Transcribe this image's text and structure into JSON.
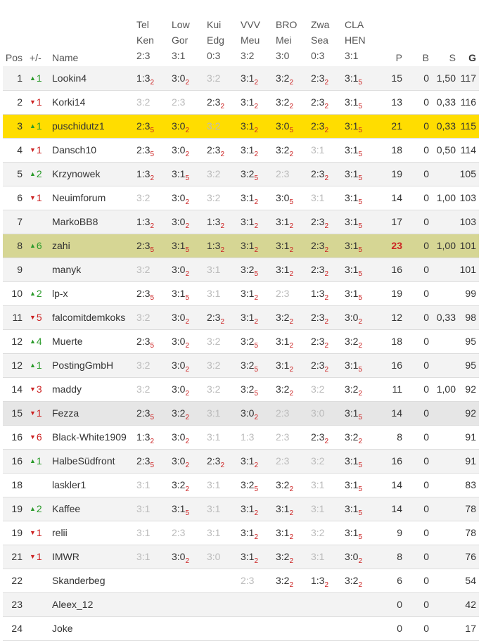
{
  "headers": {
    "pos": "Pos",
    "change": "+/-",
    "name": "Name",
    "p": "P",
    "b": "B",
    "s": "S",
    "g": "G"
  },
  "matches": [
    {
      "home": "Tel",
      "away": "Ken",
      "score": "2:3"
    },
    {
      "home": "Low",
      "away": "Gor",
      "score": "3:1"
    },
    {
      "home": "Kui",
      "away": "Edg",
      "score": "0:3"
    },
    {
      "home": "VVV",
      "away": "Meu",
      "score": "3:2"
    },
    {
      "home": "BRO",
      "away": "Mei",
      "score": "3:0"
    },
    {
      "home": "Zwa",
      "away": "Sea",
      "score": "0:3"
    },
    {
      "home": "CLA",
      "away": "HEN",
      "score": "3:1"
    }
  ],
  "rows": [
    {
      "pos": "1",
      "dir": "up",
      "delta": "1",
      "name": "Lookin4",
      "hl": "",
      "tips": [
        {
          "t": "1:3",
          "p": "2"
        },
        {
          "t": "3:0",
          "p": "2"
        },
        {
          "t": "3:2",
          "p": "",
          "f": true
        },
        {
          "t": "3:1",
          "p": "2"
        },
        {
          "t": "3:2",
          "p": "2"
        },
        {
          "t": "2:3",
          "p": "2"
        },
        {
          "t": "3:1",
          "p": "5"
        }
      ],
      "p": "15",
      "b": "0",
      "s": "1,50",
      "g": "117"
    },
    {
      "pos": "2",
      "dir": "down",
      "delta": "1",
      "name": "Korki14",
      "hl": "",
      "tips": [
        {
          "t": "3:2",
          "p": "",
          "f": true
        },
        {
          "t": "2:3",
          "p": "",
          "f": true
        },
        {
          "t": "2:3",
          "p": "2"
        },
        {
          "t": "3:1",
          "p": "2"
        },
        {
          "t": "3:2",
          "p": "2"
        },
        {
          "t": "2:3",
          "p": "2"
        },
        {
          "t": "3:1",
          "p": "5"
        }
      ],
      "p": "13",
      "b": "0",
      "s": "0,33",
      "g": "116"
    },
    {
      "pos": "3",
      "dir": "up",
      "delta": "1",
      "name": "puschidutz1",
      "hl": "yellow",
      "tips": [
        {
          "t": "2:3",
          "p": "5"
        },
        {
          "t": "3:0",
          "p": "2"
        },
        {
          "t": "3:2",
          "p": "",
          "f": true
        },
        {
          "t": "3:1",
          "p": "2"
        },
        {
          "t": "3:0",
          "p": "5"
        },
        {
          "t": "2:3",
          "p": "2"
        },
        {
          "t": "3:1",
          "p": "5"
        }
      ],
      "p": "21",
      "b": "0",
      "s": "0,33",
      "g": "115"
    },
    {
      "pos": "4",
      "dir": "down",
      "delta": "1",
      "name": "Dansch10",
      "hl": "",
      "tips": [
        {
          "t": "2:3",
          "p": "5"
        },
        {
          "t": "3:0",
          "p": "2"
        },
        {
          "t": "2:3",
          "p": "2"
        },
        {
          "t": "3:1",
          "p": "2"
        },
        {
          "t": "3:2",
          "p": "2"
        },
        {
          "t": "3:1",
          "p": "",
          "f": true
        },
        {
          "t": "3:1",
          "p": "5"
        }
      ],
      "p": "18",
      "b": "0",
      "s": "0,50",
      "g": "114"
    },
    {
      "pos": "5",
      "dir": "up",
      "delta": "2",
      "name": "Krzynowek",
      "hl": "",
      "tips": [
        {
          "t": "1:3",
          "p": "2"
        },
        {
          "t": "3:1",
          "p": "5"
        },
        {
          "t": "3:2",
          "p": "",
          "f": true
        },
        {
          "t": "3:2",
          "p": "5"
        },
        {
          "t": "2:3",
          "p": "",
          "f": true
        },
        {
          "t": "2:3",
          "p": "2"
        },
        {
          "t": "3:1",
          "p": "5"
        }
      ],
      "p": "19",
      "b": "0",
      "s": "",
      "g": "105"
    },
    {
      "pos": "6",
      "dir": "down",
      "delta": "1",
      "name": "Neuimforum",
      "hl": "",
      "tips": [
        {
          "t": "3:2",
          "p": "",
          "f": true
        },
        {
          "t": "3:0",
          "p": "2"
        },
        {
          "t": "3:2",
          "p": "",
          "f": true
        },
        {
          "t": "3:1",
          "p": "2"
        },
        {
          "t": "3:0",
          "p": "5"
        },
        {
          "t": "3:1",
          "p": "",
          "f": true
        },
        {
          "t": "3:1",
          "p": "5"
        }
      ],
      "p": "14",
      "b": "0",
      "s": "1,00",
      "g": "103"
    },
    {
      "pos": "7",
      "dir": "",
      "delta": "",
      "name": "MarkoBB8",
      "hl": "",
      "tips": [
        {
          "t": "1:3",
          "p": "2"
        },
        {
          "t": "3:0",
          "p": "2"
        },
        {
          "t": "1:3",
          "p": "2"
        },
        {
          "t": "3:1",
          "p": "2"
        },
        {
          "t": "3:1",
          "p": "2"
        },
        {
          "t": "2:3",
          "p": "2"
        },
        {
          "t": "3:1",
          "p": "5"
        }
      ],
      "p": "17",
      "b": "0",
      "s": "",
      "g": "103"
    },
    {
      "pos": "8",
      "dir": "up",
      "delta": "6",
      "name": "zahi",
      "hl": "olive",
      "tips": [
        {
          "t": "2:3",
          "p": "5"
        },
        {
          "t": "3:1",
          "p": "5"
        },
        {
          "t": "1:3",
          "p": "2"
        },
        {
          "t": "3:1",
          "p": "2"
        },
        {
          "t": "3:1",
          "p": "2"
        },
        {
          "t": "2:3",
          "p": "2"
        },
        {
          "t": "3:1",
          "p": "5"
        }
      ],
      "p": "23",
      "pmax": true,
      "b": "0",
      "s": "1,00",
      "g": "101"
    },
    {
      "pos": "9",
      "dir": "",
      "delta": "",
      "name": "manyk",
      "hl": "",
      "tips": [
        {
          "t": "3:2",
          "p": "",
          "f": true
        },
        {
          "t": "3:0",
          "p": "2"
        },
        {
          "t": "3:1",
          "p": "",
          "f": true
        },
        {
          "t": "3:2",
          "p": "5"
        },
        {
          "t": "3:1",
          "p": "2"
        },
        {
          "t": "2:3",
          "p": "2"
        },
        {
          "t": "3:1",
          "p": "5"
        }
      ],
      "p": "16",
      "b": "0",
      "s": "",
      "g": "101"
    },
    {
      "pos": "10",
      "dir": "up",
      "delta": "2",
      "name": "lp-x",
      "hl": "",
      "tips": [
        {
          "t": "2:3",
          "p": "5"
        },
        {
          "t": "3:1",
          "p": "5"
        },
        {
          "t": "3:1",
          "p": "",
          "f": true
        },
        {
          "t": "3:1",
          "p": "2"
        },
        {
          "t": "2:3",
          "p": "",
          "f": true
        },
        {
          "t": "1:3",
          "p": "2"
        },
        {
          "t": "3:1",
          "p": "5"
        }
      ],
      "p": "19",
      "b": "0",
      "s": "",
      "g": "99"
    },
    {
      "pos": "11",
      "dir": "down",
      "delta": "5",
      "name": "falcomitdemkoks",
      "hl": "",
      "tips": [
        {
          "t": "3:2",
          "p": "",
          "f": true
        },
        {
          "t": "3:0",
          "p": "2"
        },
        {
          "t": "2:3",
          "p": "2"
        },
        {
          "t": "3:1",
          "p": "2"
        },
        {
          "t": "3:2",
          "p": "2"
        },
        {
          "t": "2:3",
          "p": "2"
        },
        {
          "t": "3:0",
          "p": "2"
        }
      ],
      "p": "12",
      "b": "0",
      "s": "0,33",
      "g": "98"
    },
    {
      "pos": "12",
      "dir": "up",
      "delta": "4",
      "name": "Muerte",
      "hl": "",
      "tips": [
        {
          "t": "2:3",
          "p": "5"
        },
        {
          "t": "3:0",
          "p": "2"
        },
        {
          "t": "3:2",
          "p": "",
          "f": true
        },
        {
          "t": "3:2",
          "p": "5"
        },
        {
          "t": "3:1",
          "p": "2"
        },
        {
          "t": "2:3",
          "p": "2"
        },
        {
          "t": "3:2",
          "p": "2"
        }
      ],
      "p": "18",
      "b": "0",
      "s": "",
      "g": "95"
    },
    {
      "pos": "12",
      "dir": "up",
      "delta": "1",
      "name": "PostingGmbH",
      "hl": "",
      "tips": [
        {
          "t": "3:2",
          "p": "",
          "f": true
        },
        {
          "t": "3:0",
          "p": "2"
        },
        {
          "t": "3:2",
          "p": "",
          "f": true
        },
        {
          "t": "3:2",
          "p": "5"
        },
        {
          "t": "3:1",
          "p": "2"
        },
        {
          "t": "2:3",
          "p": "2"
        },
        {
          "t": "3:1",
          "p": "5"
        }
      ],
      "p": "16",
      "b": "0",
      "s": "",
      "g": "95"
    },
    {
      "pos": "14",
      "dir": "down",
      "delta": "3",
      "name": "maddy",
      "hl": "",
      "tips": [
        {
          "t": "3:2",
          "p": "",
          "f": true
        },
        {
          "t": "3:0",
          "p": "2"
        },
        {
          "t": "3:2",
          "p": "",
          "f": true
        },
        {
          "t": "3:2",
          "p": "5"
        },
        {
          "t": "3:2",
          "p": "2"
        },
        {
          "t": "3:2",
          "p": "",
          "f": true
        },
        {
          "t": "3:2",
          "p": "2"
        }
      ],
      "p": "11",
      "b": "0",
      "s": "1,00",
      "g": "92"
    },
    {
      "pos": "15",
      "dir": "down",
      "delta": "1",
      "name": "Fezza",
      "hl": "grey",
      "tips": [
        {
          "t": "2:3",
          "p": "5"
        },
        {
          "t": "3:2",
          "p": "2"
        },
        {
          "t": "3:1",
          "p": "",
          "f": true
        },
        {
          "t": "3:0",
          "p": "2"
        },
        {
          "t": "2:3",
          "p": "",
          "f": true
        },
        {
          "t": "3:0",
          "p": "",
          "f": true
        },
        {
          "t": "3:1",
          "p": "5"
        }
      ],
      "p": "14",
      "b": "0",
      "s": "",
      "g": "92"
    },
    {
      "pos": "16",
      "dir": "down",
      "delta": "6",
      "name": "Black-White1909",
      "hl": "",
      "tips": [
        {
          "t": "1:3",
          "p": "2"
        },
        {
          "t": "3:0",
          "p": "2"
        },
        {
          "t": "3:1",
          "p": "",
          "f": true
        },
        {
          "t": "1:3",
          "p": "",
          "f": true
        },
        {
          "t": "2:3",
          "p": "",
          "f": true
        },
        {
          "t": "2:3",
          "p": "2"
        },
        {
          "t": "3:2",
          "p": "2"
        }
      ],
      "p": "8",
      "b": "0",
      "s": "",
      "g": "91"
    },
    {
      "pos": "16",
      "dir": "up",
      "delta": "1",
      "name": "HalbeSüdfront",
      "hl": "",
      "tips": [
        {
          "t": "2:3",
          "p": "5"
        },
        {
          "t": "3:0",
          "p": "2"
        },
        {
          "t": "2:3",
          "p": "2"
        },
        {
          "t": "3:1",
          "p": "2"
        },
        {
          "t": "2:3",
          "p": "",
          "f": true
        },
        {
          "t": "3:2",
          "p": "",
          "f": true
        },
        {
          "t": "3:1",
          "p": "5"
        }
      ],
      "p": "16",
      "b": "0",
      "s": "",
      "g": "91"
    },
    {
      "pos": "18",
      "dir": "",
      "delta": "",
      "name": "laskler1",
      "hl": "",
      "tips": [
        {
          "t": "3:1",
          "p": "",
          "f": true
        },
        {
          "t": "3:2",
          "p": "2"
        },
        {
          "t": "3:1",
          "p": "",
          "f": true
        },
        {
          "t": "3:2",
          "p": "5"
        },
        {
          "t": "3:2",
          "p": "2"
        },
        {
          "t": "3:1",
          "p": "",
          "f": true
        },
        {
          "t": "3:1",
          "p": "5"
        }
      ],
      "p": "14",
      "b": "0",
      "s": "",
      "g": "83"
    },
    {
      "pos": "19",
      "dir": "up",
      "delta": "2",
      "name": "Kaffee",
      "hl": "",
      "tips": [
        {
          "t": "3:1",
          "p": "",
          "f": true
        },
        {
          "t": "3:1",
          "p": "5"
        },
        {
          "t": "3:1",
          "p": "",
          "f": true
        },
        {
          "t": "3:1",
          "p": "2"
        },
        {
          "t": "3:1",
          "p": "2"
        },
        {
          "t": "3:1",
          "p": "",
          "f": true
        },
        {
          "t": "3:1",
          "p": "5"
        }
      ],
      "p": "14",
      "b": "0",
      "s": "",
      "g": "78"
    },
    {
      "pos": "19",
      "dir": "down",
      "delta": "1",
      "name": "relii",
      "hl": "",
      "tips": [
        {
          "t": "3:1",
          "p": "",
          "f": true
        },
        {
          "t": "2:3",
          "p": "",
          "f": true
        },
        {
          "t": "3:1",
          "p": "",
          "f": true
        },
        {
          "t": "3:1",
          "p": "2"
        },
        {
          "t": "3:1",
          "p": "2"
        },
        {
          "t": "3:2",
          "p": "",
          "f": true
        },
        {
          "t": "3:1",
          "p": "5"
        }
      ],
      "p": "9",
      "b": "0",
      "s": "",
      "g": "78"
    },
    {
      "pos": "21",
      "dir": "down",
      "delta": "1",
      "name": "IMWR",
      "hl": "",
      "tips": [
        {
          "t": "3:1",
          "p": "",
          "f": true
        },
        {
          "t": "3:0",
          "p": "2"
        },
        {
          "t": "3:0",
          "p": "",
          "f": true
        },
        {
          "t": "3:1",
          "p": "2"
        },
        {
          "t": "3:2",
          "p": "2"
        },
        {
          "t": "3:1",
          "p": "",
          "f": true
        },
        {
          "t": "3:0",
          "p": "2"
        }
      ],
      "p": "8",
      "b": "0",
      "s": "",
      "g": "76"
    },
    {
      "pos": "22",
      "dir": "",
      "delta": "",
      "name": "Skanderbeg",
      "hl": "",
      "tips": [
        {
          "t": "",
          "p": ""
        },
        {
          "t": "",
          "p": ""
        },
        {
          "t": "",
          "p": ""
        },
        {
          "t": "2:3",
          "p": "",
          "f": true
        },
        {
          "t": "3:2",
          "p": "2"
        },
        {
          "t": "1:3",
          "p": "2"
        },
        {
          "t": "3:2",
          "p": "2"
        }
      ],
      "p": "6",
      "b": "0",
      "s": "",
      "g": "54"
    },
    {
      "pos": "23",
      "dir": "",
      "delta": "",
      "name": "Aleex_12",
      "hl": "",
      "tips": [
        {
          "t": "",
          "p": ""
        },
        {
          "t": "",
          "p": ""
        },
        {
          "t": "",
          "p": ""
        },
        {
          "t": "",
          "p": ""
        },
        {
          "t": "",
          "p": ""
        },
        {
          "t": "",
          "p": ""
        },
        {
          "t": "",
          "p": ""
        }
      ],
      "p": "0",
      "b": "0",
      "s": "",
      "g": "42"
    },
    {
      "pos": "24",
      "dir": "",
      "delta": "",
      "name": "Joke",
      "hl": "",
      "tips": [
        {
          "t": "",
          "p": ""
        },
        {
          "t": "",
          "p": ""
        },
        {
          "t": "",
          "p": ""
        },
        {
          "t": "",
          "p": ""
        },
        {
          "t": "",
          "p": ""
        },
        {
          "t": "",
          "p": ""
        },
        {
          "t": "",
          "p": ""
        }
      ],
      "p": "0",
      "b": "0",
      "s": "",
      "g": "17"
    }
  ]
}
